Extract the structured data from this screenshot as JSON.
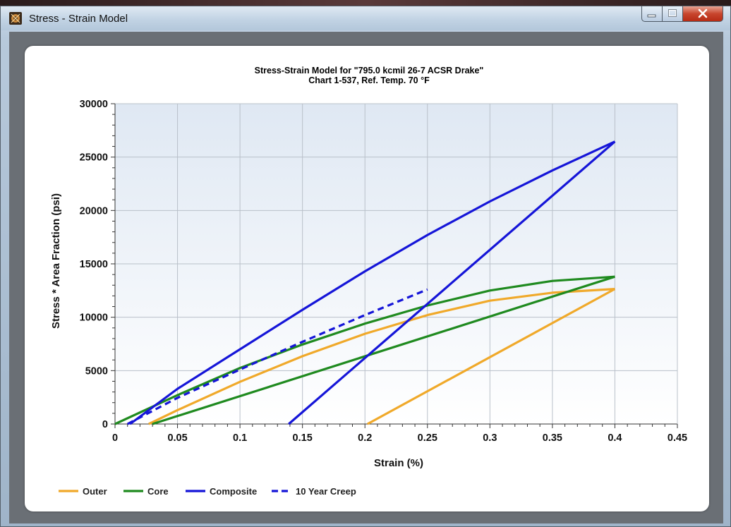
{
  "window": {
    "title": "Stress - Strain Model",
    "min_glyph": "–",
    "max_glyph": "□",
    "close_glyph": "x"
  },
  "chart_data": {
    "type": "line",
    "title": "Stress-Strain Model for \"795.0 kcmil 26-7 ACSR Drake\"",
    "subtitle": "Chart 1-537, Ref. Temp. 70 °F",
    "xlabel": "Strain (%)",
    "ylabel": "Stress * Area Fraction (psi)",
    "xlim": [
      0,
      0.45
    ],
    "ylim": [
      0,
      30000
    ],
    "xticks": [
      "0",
      "0.05",
      "0.1",
      "0.15",
      "0.2",
      "0.25",
      "0.3",
      "0.35",
      "0.4",
      "0.45"
    ],
    "yticks": [
      "0",
      "5000",
      "10000",
      "15000",
      "20000",
      "25000",
      "30000"
    ],
    "grid": true,
    "legend_position": "bottom-left",
    "series": [
      {
        "name": "Outer",
        "color": "#f0a92a",
        "style": "solid",
        "segments": [
          [
            [
              0.027,
              0
            ],
            [
              0.05,
              1300
            ],
            [
              0.1,
              3950
            ],
            [
              0.15,
              6350
            ],
            [
              0.2,
              8450
            ],
            [
              0.25,
              10200
            ],
            [
              0.3,
              11550
            ],
            [
              0.35,
              12300
            ],
            [
              0.4,
              12650
            ]
          ],
          [
            [
              0.4,
              12650
            ],
            [
              0.202,
              0
            ]
          ]
        ]
      },
      {
        "name": "Core",
        "color": "#1f8a1f",
        "style": "solid",
        "segments": [
          [
            [
              0,
              0
            ],
            [
              0.05,
              2700
            ],
            [
              0.1,
              5250
            ],
            [
              0.15,
              7450
            ],
            [
              0.2,
              9400
            ],
            [
              0.25,
              11100
            ],
            [
              0.3,
              12500
            ],
            [
              0.35,
              13400
            ],
            [
              0.4,
              13800
            ]
          ],
          [
            [
              0.4,
              13800
            ],
            [
              0.03,
              0
            ]
          ]
        ]
      },
      {
        "name": "Composite",
        "color": "#1515d8",
        "style": "solid",
        "segments": [
          [
            [
              0.012,
              0
            ],
            [
              0.05,
              3300
            ],
            [
              0.1,
              7000
            ],
            [
              0.15,
              10700
            ],
            [
              0.2,
              14300
            ],
            [
              0.25,
              17700
            ],
            [
              0.3,
              20850
            ],
            [
              0.35,
              23750
            ],
            [
              0.4,
              26450
            ]
          ],
          [
            [
              0.4,
              26450
            ],
            [
              0.139,
              0
            ]
          ]
        ]
      },
      {
        "name": "10 Year Creep",
        "color": "#1515d8",
        "style": "dashed",
        "segments": [
          [
            [
              0.01,
              0
            ],
            [
              0.05,
              2450
            ],
            [
              0.1,
              5100
            ],
            [
              0.15,
              7700
            ],
            [
              0.2,
              10200
            ],
            [
              0.25,
              12600
            ]
          ]
        ]
      }
    ]
  }
}
